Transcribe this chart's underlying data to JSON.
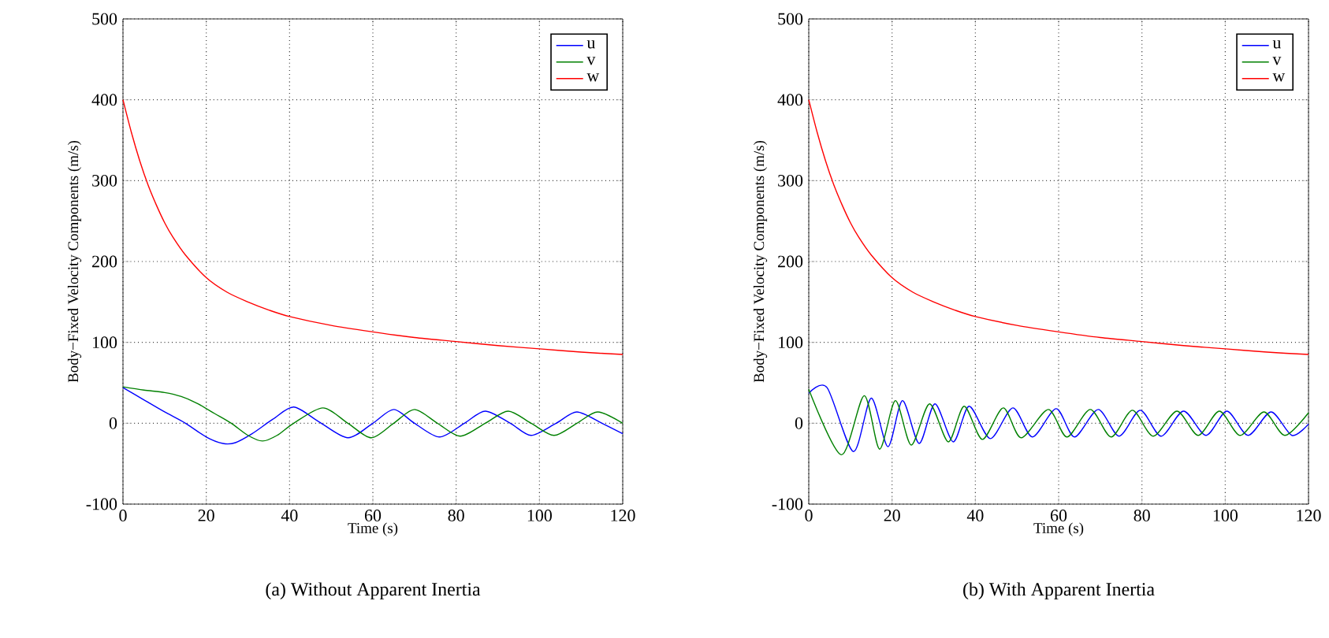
{
  "chart_data": [
    {
      "type": "line",
      "xlabel": "Time (s)",
      "ylabel": "Body−Fixed Velocity Components (m/s)",
      "annotations": [
        "(a)  Without Apparent Inertia"
      ],
      "xlim": [
        0,
        120
      ],
      "ylim": [
        -100,
        500
      ],
      "xticks": [
        0,
        20,
        40,
        60,
        80,
        100,
        120
      ],
      "yticks": [
        -100,
        0,
        100,
        200,
        300,
        400,
        500
      ],
      "grid": true,
      "legend": "top right",
      "series": [
        {
          "name": "u",
          "color": "#0000ff",
          "x": [
            0,
            5,
            10,
            15,
            20,
            24,
            27,
            31,
            36,
            41,
            47,
            54,
            60,
            65,
            70,
            76,
            82,
            87,
            93,
            98,
            104,
            109,
            115,
            120
          ],
          "values": [
            44,
            29,
            14,
            0,
            -17,
            -25,
            -24,
            -13,
            5,
            20,
            2,
            -18,
            0,
            17,
            0,
            -17,
            0,
            15,
            0,
            -15,
            0,
            14,
            0,
            -13
          ]
        },
        {
          "name": "v",
          "color": "#008000",
          "x": [
            0,
            5,
            10,
            14,
            18,
            22,
            26,
            30,
            33.5,
            37,
            41,
            48,
            54,
            59.6,
            65,
            70,
            75.5,
            81,
            87,
            92.5,
            98,
            103.5,
            109,
            114,
            120
          ],
          "values": [
            45,
            41,
            38,
            33,
            24,
            12,
            0,
            -15,
            -22,
            -15,
            0,
            19,
            0,
            -18,
            0,
            17,
            0,
            -16,
            0,
            15,
            0,
            -15,
            0,
            14,
            0
          ]
        },
        {
          "name": "w",
          "color": "#ff0000",
          "x": [
            0,
            2,
            4,
            6,
            8,
            10,
            12,
            15,
            20,
            25,
            30,
            35,
            40,
            50,
            60,
            70,
            80,
            90,
            100,
            110,
            120
          ],
          "values": [
            400,
            360,
            325,
            295,
            270,
            248,
            230,
            208,
            180,
            162,
            150,
            140,
            132,
            121,
            113,
            106,
            101,
            96,
            92,
            88,
            85
          ]
        }
      ]
    },
    {
      "type": "line",
      "xlabel": "Time (s)",
      "ylabel": "Body−Fixed Velocity Components (m/s)",
      "annotations": [
        "(b)  With Apparent Inertia"
      ],
      "xlim": [
        0,
        120
      ],
      "ylim": [
        -100,
        500
      ],
      "xticks": [
        0,
        20,
        40,
        60,
        80,
        100,
        120
      ],
      "yticks": [
        -100,
        0,
        100,
        200,
        300,
        400,
        500
      ],
      "grid": true,
      "legend": "top right",
      "series": [
        {
          "name": "u",
          "color": "#0000ff",
          "x": [
            0,
            4.4,
            10.7,
            15,
            19,
            22.5,
            26.5,
            30.3,
            34.7,
            38.5,
            43.6,
            49,
            53.7,
            59.4,
            63.8,
            69.5,
            74.5,
            79.6,
            84.6,
            90,
            95.4,
            100.4,
            105.5,
            111,
            116,
            120
          ],
          "values": [
            37,
            44,
            -35,
            31,
            -29,
            28,
            -25,
            24,
            -23,
            21,
            -19,
            19,
            -17,
            18,
            -17,
            17,
            -16,
            16,
            -16,
            15,
            -15,
            15,
            -15,
            14,
            -15,
            -1
          ]
        },
        {
          "name": "v",
          "color": "#008000",
          "x": [
            0,
            7.8,
            13.3,
            17,
            20.8,
            24.6,
            29,
            33.5,
            37.3,
            41.7,
            46.7,
            51,
            57.5,
            62,
            67.6,
            72.6,
            77.7,
            82.7,
            88.4,
            93.5,
            98.6,
            103.6,
            109.3,
            114.3,
            120
          ],
          "values": [
            42,
            -39,
            34,
            -32,
            28,
            -27,
            24,
            -23,
            21,
            -20,
            19,
            -18,
            17,
            -17,
            17,
            -17,
            16,
            -16,
            15,
            -15,
            15,
            -15,
            14,
            -15,
            13
          ]
        },
        {
          "name": "w",
          "color": "#ff0000",
          "x": [
            0,
            2,
            4,
            6,
            8,
            10,
            12,
            15,
            20,
            25,
            30,
            35,
            40,
            50,
            60,
            70,
            80,
            90,
            100,
            110,
            120
          ],
          "values": [
            400,
            360,
            325,
            295,
            270,
            248,
            230,
            208,
            180,
            162,
            150,
            140,
            132,
            121,
            113,
            106,
            101,
            96,
            92,
            88,
            85
          ]
        }
      ]
    }
  ]
}
